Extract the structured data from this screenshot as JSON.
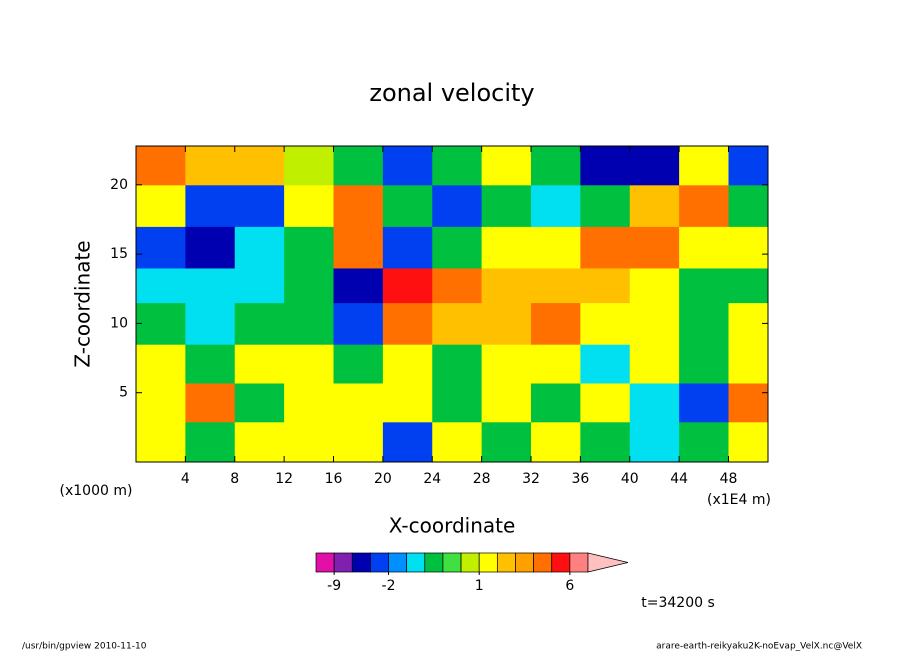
{
  "chart_data": {
    "type": "contour",
    "title": "zonal velocity",
    "x_label": "X-coordinate",
    "y_label": "Z-coordinate",
    "y_unit": "(x1000 m)",
    "x_unit": "(x1E4 m)",
    "time_label": "t=34200 s",
    "footer_left": "/usr/bin/gpview  2010-11-10",
    "footer_right": "arare-earth-reikyaku2K-noEvap_VelX.nc@VelX",
    "xlim": [
      0,
      51.2
    ],
    "ylim": [
      0,
      22.8
    ],
    "xticks": [
      4,
      8,
      12,
      16,
      20,
      24,
      28,
      32,
      36,
      40,
      44,
      48
    ],
    "yticks": [
      5,
      10,
      15,
      20
    ],
    "x_edges": [
      0,
      4,
      8,
      12,
      16,
      20,
      24,
      28,
      32,
      36,
      40,
      44,
      48,
      51.2
    ],
    "y_edges": [
      0,
      2.9,
      5.7,
      8.5,
      11.5,
      14,
      17,
      20,
      22.8
    ],
    "z": [
      [
        1.2,
        -0.3,
        1.2,
        1.2,
        1.2,
        -2.5,
        1.2,
        -0.3,
        1.2,
        -0.3,
        -0.7,
        -0.3,
        1.2
      ],
      [
        1.2,
        3,
        -0.3,
        1.2,
        1.2,
        1.2,
        -0.3,
        1.2,
        -0.3,
        1.2,
        -0.7,
        -2.5,
        3
      ],
      [
        1.2,
        -0.3,
        1.2,
        1.2,
        -0.3,
        1.2,
        -0.3,
        1.2,
        1.2,
        -0.7,
        1.2,
        -0.3,
        1.2
      ],
      [
        -0.3,
        -0.7,
        -0.3,
        -0.3,
        -2.5,
        3,
        1.8,
        1.8,
        3,
        1.2,
        1.2,
        -0.3,
        1.2
      ],
      [
        -0.7,
        -0.7,
        -0.7,
        -0.3,
        -4,
        5,
        3,
        1.8,
        1.8,
        1.8,
        1.2,
        -0.3,
        -0.3
      ],
      [
        -2.5,
        -4,
        -0.7,
        -0.3,
        3,
        -2.5,
        -0.3,
        1.2,
        1.2,
        3,
        3,
        1.2,
        1.2
      ],
      [
        1.2,
        -2.5,
        -2.5,
        1.2,
        3,
        -0.3,
        -2.5,
        -0.3,
        -0.7,
        -0.3,
        1.8,
        3,
        -0.3
      ],
      [
        3,
        1.8,
        1.8,
        0.7,
        -0.3,
        -2.5,
        -0.3,
        1.2,
        -0.3,
        -4,
        -4,
        1.2,
        -2.5
      ]
    ],
    "levels": [
      -12,
      -9,
      -6,
      -3,
      -2,
      -1,
      -0.5,
      0,
      0.5,
      1,
      1.5,
      2,
      2.5,
      4,
      6,
      8
    ],
    "colors": [
      "#e010a8",
      "#8020b0",
      "#0000b0",
      "#0040f0",
      "#0090ff",
      "#00e0f0",
      "#00c040",
      "#40e040",
      "#c0f000",
      "#ffff00",
      "#ffc000",
      "#ffa000",
      "#ff7000",
      "#ff1010",
      "#ff8080"
    ],
    "over_color": "#ffc0c0",
    "colorbar_ticks": [
      -9,
      -2,
      1,
      6
    ]
  }
}
